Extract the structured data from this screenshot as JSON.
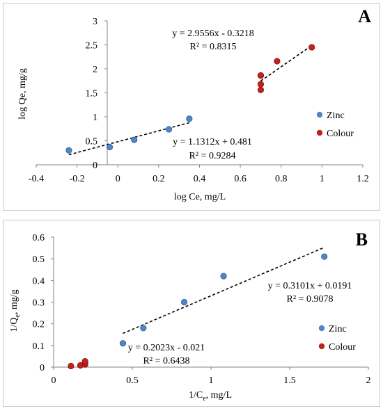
{
  "chart_data": [
    {
      "type": "scatter",
      "panel_label": "A",
      "xlabel": "log Ce, mg/L",
      "ylabel": "log Qe, mg/g",
      "xlim": [
        -0.4,
        1.2
      ],
      "ylim": [
        0,
        3
      ],
      "xticks": [
        "-0.4",
        "-0.2",
        "0",
        "0.2",
        "0.4",
        "0.6",
        "0.8",
        "1",
        "1.2"
      ],
      "yticks": [
        "0",
        "0.5",
        "1",
        "1.5",
        "2",
        "2.5",
        "3"
      ],
      "grid": false,
      "legend_position": "right",
      "series": [
        {
          "name": "Zinc",
          "color": "#4f86c6",
          "x": [
            -0.24,
            -0.04,
            0.08,
            0.25,
            0.35
          ],
          "y": [
            0.3,
            0.37,
            0.52,
            0.74,
            0.96
          ],
          "trend": {
            "slope": 1.1312,
            "intercept": 0.481,
            "x_range": [
              -0.24,
              0.35
            ]
          },
          "equation": "y = 1.1312x + 0.481",
          "r2": "R² = 0.9284"
        },
        {
          "name": "Colour",
          "color": "#c0231b",
          "x": [
            0.7,
            0.7,
            0.7,
            0.7,
            0.78,
            0.95
          ],
          "y": [
            1.56,
            1.68,
            1.86,
            1.86,
            2.16,
            2.45
          ],
          "trend": {
            "slope": 2.9556,
            "intercept": -0.3218,
            "x_range": [
              0.7,
              0.95
            ]
          },
          "equation": "y = 2.9556x - 0.3218",
          "r2": "R² = 0.8315"
        }
      ]
    },
    {
      "type": "scatter",
      "panel_label": "B",
      "xlabel": "1/C",
      "xlabel_sub": "e",
      "xlabel_rest": ", mg/L",
      "ylabel": "1/Q",
      "ylabel_sub": "e",
      "ylabel_rest": ", mg/g",
      "xlim": [
        0,
        2
      ],
      "ylim": [
        0,
        0.6
      ],
      "xticks": [
        "0",
        "0.5",
        "1",
        "1.5",
        "2"
      ],
      "yticks": [
        "0",
        "0.1",
        "0.2",
        "0.3",
        "0.4",
        "0.5",
        "0.6"
      ],
      "grid": false,
      "legend_position": "right",
      "series": [
        {
          "name": "Zinc",
          "color": "#4f86c6",
          "x": [
            0.44,
            0.57,
            0.83,
            1.08,
            1.72
          ],
          "y": [
            0.11,
            0.18,
            0.3,
            0.42,
            0.51
          ],
          "trend": {
            "slope": 0.3101,
            "intercept": 0.0191,
            "x_range": [
              0.44,
              1.72
            ]
          },
          "equation": "y = 0.3101x + 0.0191",
          "r2": "R² = 0.9078"
        },
        {
          "name": "Colour",
          "color": "#c0231b",
          "x": [
            0.11,
            0.17,
            0.2,
            0.2,
            0.2
          ],
          "y": [
            0.005,
            0.008,
            0.012,
            0.02,
            0.027
          ],
          "trend": null,
          "equation": "y = 0.2023x - 0.021",
          "r2": "R² = 0.6438"
        }
      ]
    }
  ]
}
